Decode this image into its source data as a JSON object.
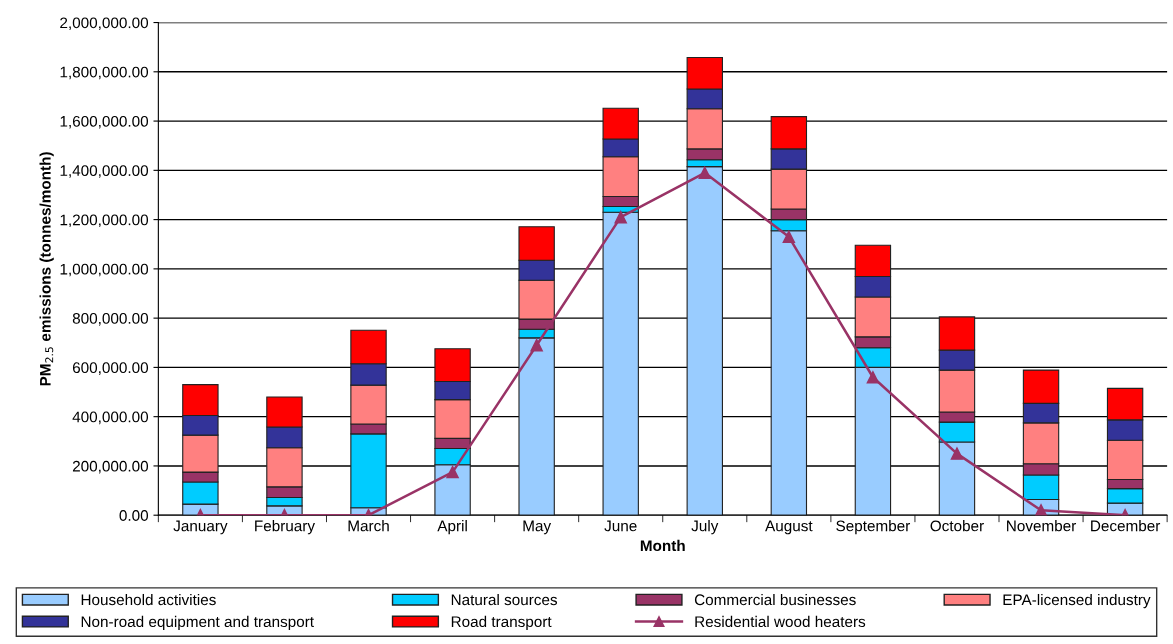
{
  "chart_data": {
    "type": "bar",
    "stacked": true,
    "xlabel": "Month",
    "ylabel": "PM$_{2.5}$ emissions (tonnes/month)",
    "categories": [
      "January",
      "February",
      "March",
      "April",
      "May",
      "June",
      "July",
      "August",
      "September",
      "October",
      "November",
      "December"
    ],
    "series": [
      {
        "name": "Household activities",
        "color": "#99ccff",
        "values": [
          45000,
          38000,
          30000,
          205000,
          720000,
          1230000,
          1415000,
          1155000,
          600000,
          297000,
          64000,
          49000
        ]
      },
      {
        "name": "Natural sources",
        "color": "#00ccff",
        "values": [
          90000,
          34000,
          300000,
          66000,
          35000,
          23000,
          28000,
          45000,
          80000,
          81000,
          99000,
          59000
        ]
      },
      {
        "name": "Commercial businesses",
        "color": "#993366",
        "values": [
          40000,
          43000,
          40000,
          41000,
          41000,
          41000,
          44000,
          43000,
          44000,
          41000,
          46000,
          37000
        ]
      },
      {
        "name": "EPA-licensed industry",
        "color": "#ff8080",
        "values": [
          150000,
          159000,
          158000,
          157000,
          158000,
          161000,
          163000,
          162000,
          162000,
          170000,
          166000,
          159000
        ]
      },
      {
        "name": "Non-road equipment and transport",
        "color": "#333399",
        "values": [
          80000,
          84000,
          87000,
          74000,
          81000,
          72000,
          80000,
          82000,
          83000,
          81000,
          79000,
          83000
        ]
      },
      {
        "name": "Road transport",
        "color": "#ff0000",
        "values": [
          125000,
          122000,
          136000,
          133000,
          136000,
          125000,
          128000,
          131000,
          127000,
          135000,
          135000,
          128000
        ]
      },
      {
        "name": "Residential wood heaters",
        "type": "line",
        "color": "#993366",
        "marker": "triangle",
        "values": [
          0,
          0,
          0,
          175000,
          690000,
          1210000,
          1390000,
          1130000,
          560000,
          250000,
          20000,
          0
        ]
      }
    ],
    "ylim": [
      0,
      2000000
    ],
    "yticks": [
      {
        "value": 0,
        "label": "0.00"
      },
      {
        "value": 200000,
        "label": "200,000.00"
      },
      {
        "value": 400000,
        "label": "400,000.00"
      },
      {
        "value": 600000,
        "label": "600,000.00"
      },
      {
        "value": 800000,
        "label": "800,000.00"
      },
      {
        "value": 1000000,
        "label": "1,000,000.00"
      },
      {
        "value": 1200000,
        "label": "1,200,000.00"
      },
      {
        "value": 1400000,
        "label": "1,400,000.00"
      },
      {
        "value": 1600000,
        "label": "1,600,000.00"
      },
      {
        "value": 1800000,
        "label": "1,800,000.00"
      },
      {
        "value": 2000000,
        "label": "2,000,000.00"
      }
    ],
    "grid": "y",
    "legend": "bottom"
  }
}
